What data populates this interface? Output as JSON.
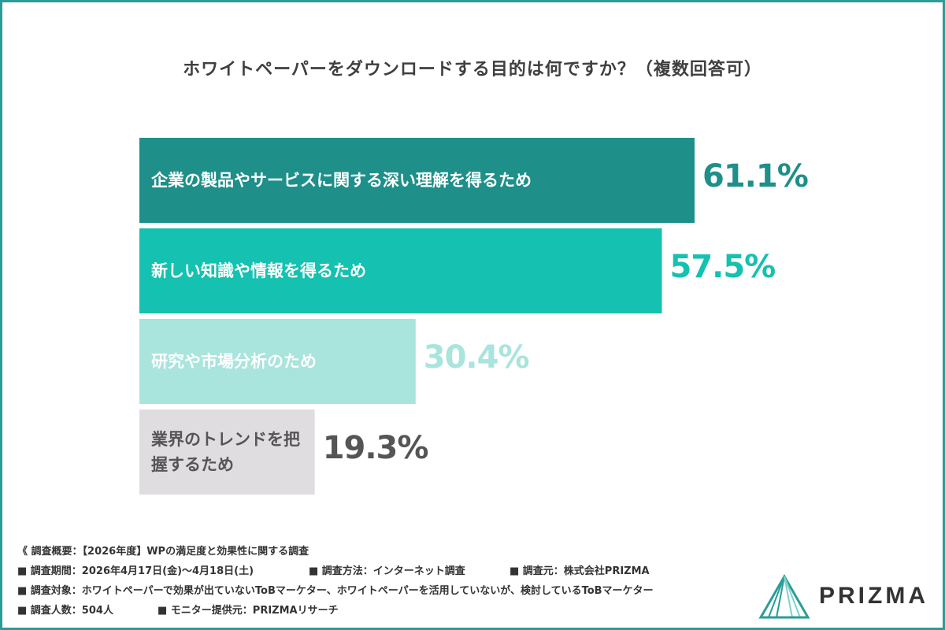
{
  "title": "ホワイトペーパーをダウンロードする目的は何ですか？（複数回答可）",
  "chart_data": {
    "type": "bar",
    "orientation": "horizontal",
    "title": "ホワイトペーパーをダウンロードする目的は何ですか？（複数回答可）",
    "unit": "%",
    "xlim": [
      0,
      100
    ],
    "categories": [
      "企業の製品やサービスに関する深い理解を得るため",
      "新しい知識や情報を得るため",
      "研究や市場分析のため",
      "業界のトレンドを把握するため"
    ],
    "values": [
      61.1,
      57.5,
      30.4,
      19.3
    ],
    "value_labels": [
      "61.1%",
      "57.5%",
      "30.4%",
      "19.3%"
    ],
    "bar_colors": [
      "#1e8f89",
      "#15c1b0",
      "#a9e4dd",
      "#e0dde0"
    ],
    "label_colors": [
      "#ffffff",
      "#ffffff",
      "#ffffff",
      "#555555"
    ],
    "value_colors": [
      "#1e8f89",
      "#15c1b0",
      "#a9e4dd",
      "#555555"
    ],
    "grid": false,
    "legend": "none"
  },
  "notes": {
    "overview": "《 調査概要：【2026年度】WPの満足度と効果性に関する調査",
    "period": "■ 調査期間：2026年4月17日(金)〜4月18日(土)",
    "method": "■ 調査方法：インターネット調査",
    "source": "■ 調査元：株式会社PRIZMA",
    "target": "■ 調査対象：ホワイトペーパーで効果が出ていないToBマーケター、ホワイトペーパーを活用していないが、検討しているToBマーケター",
    "count": "■ 調査人数：504人",
    "monitor": "■ モニター提供元：PRIZMAリサーチ"
  },
  "logo": {
    "text": "PRIZMA",
    "color": "#2a9d96"
  }
}
